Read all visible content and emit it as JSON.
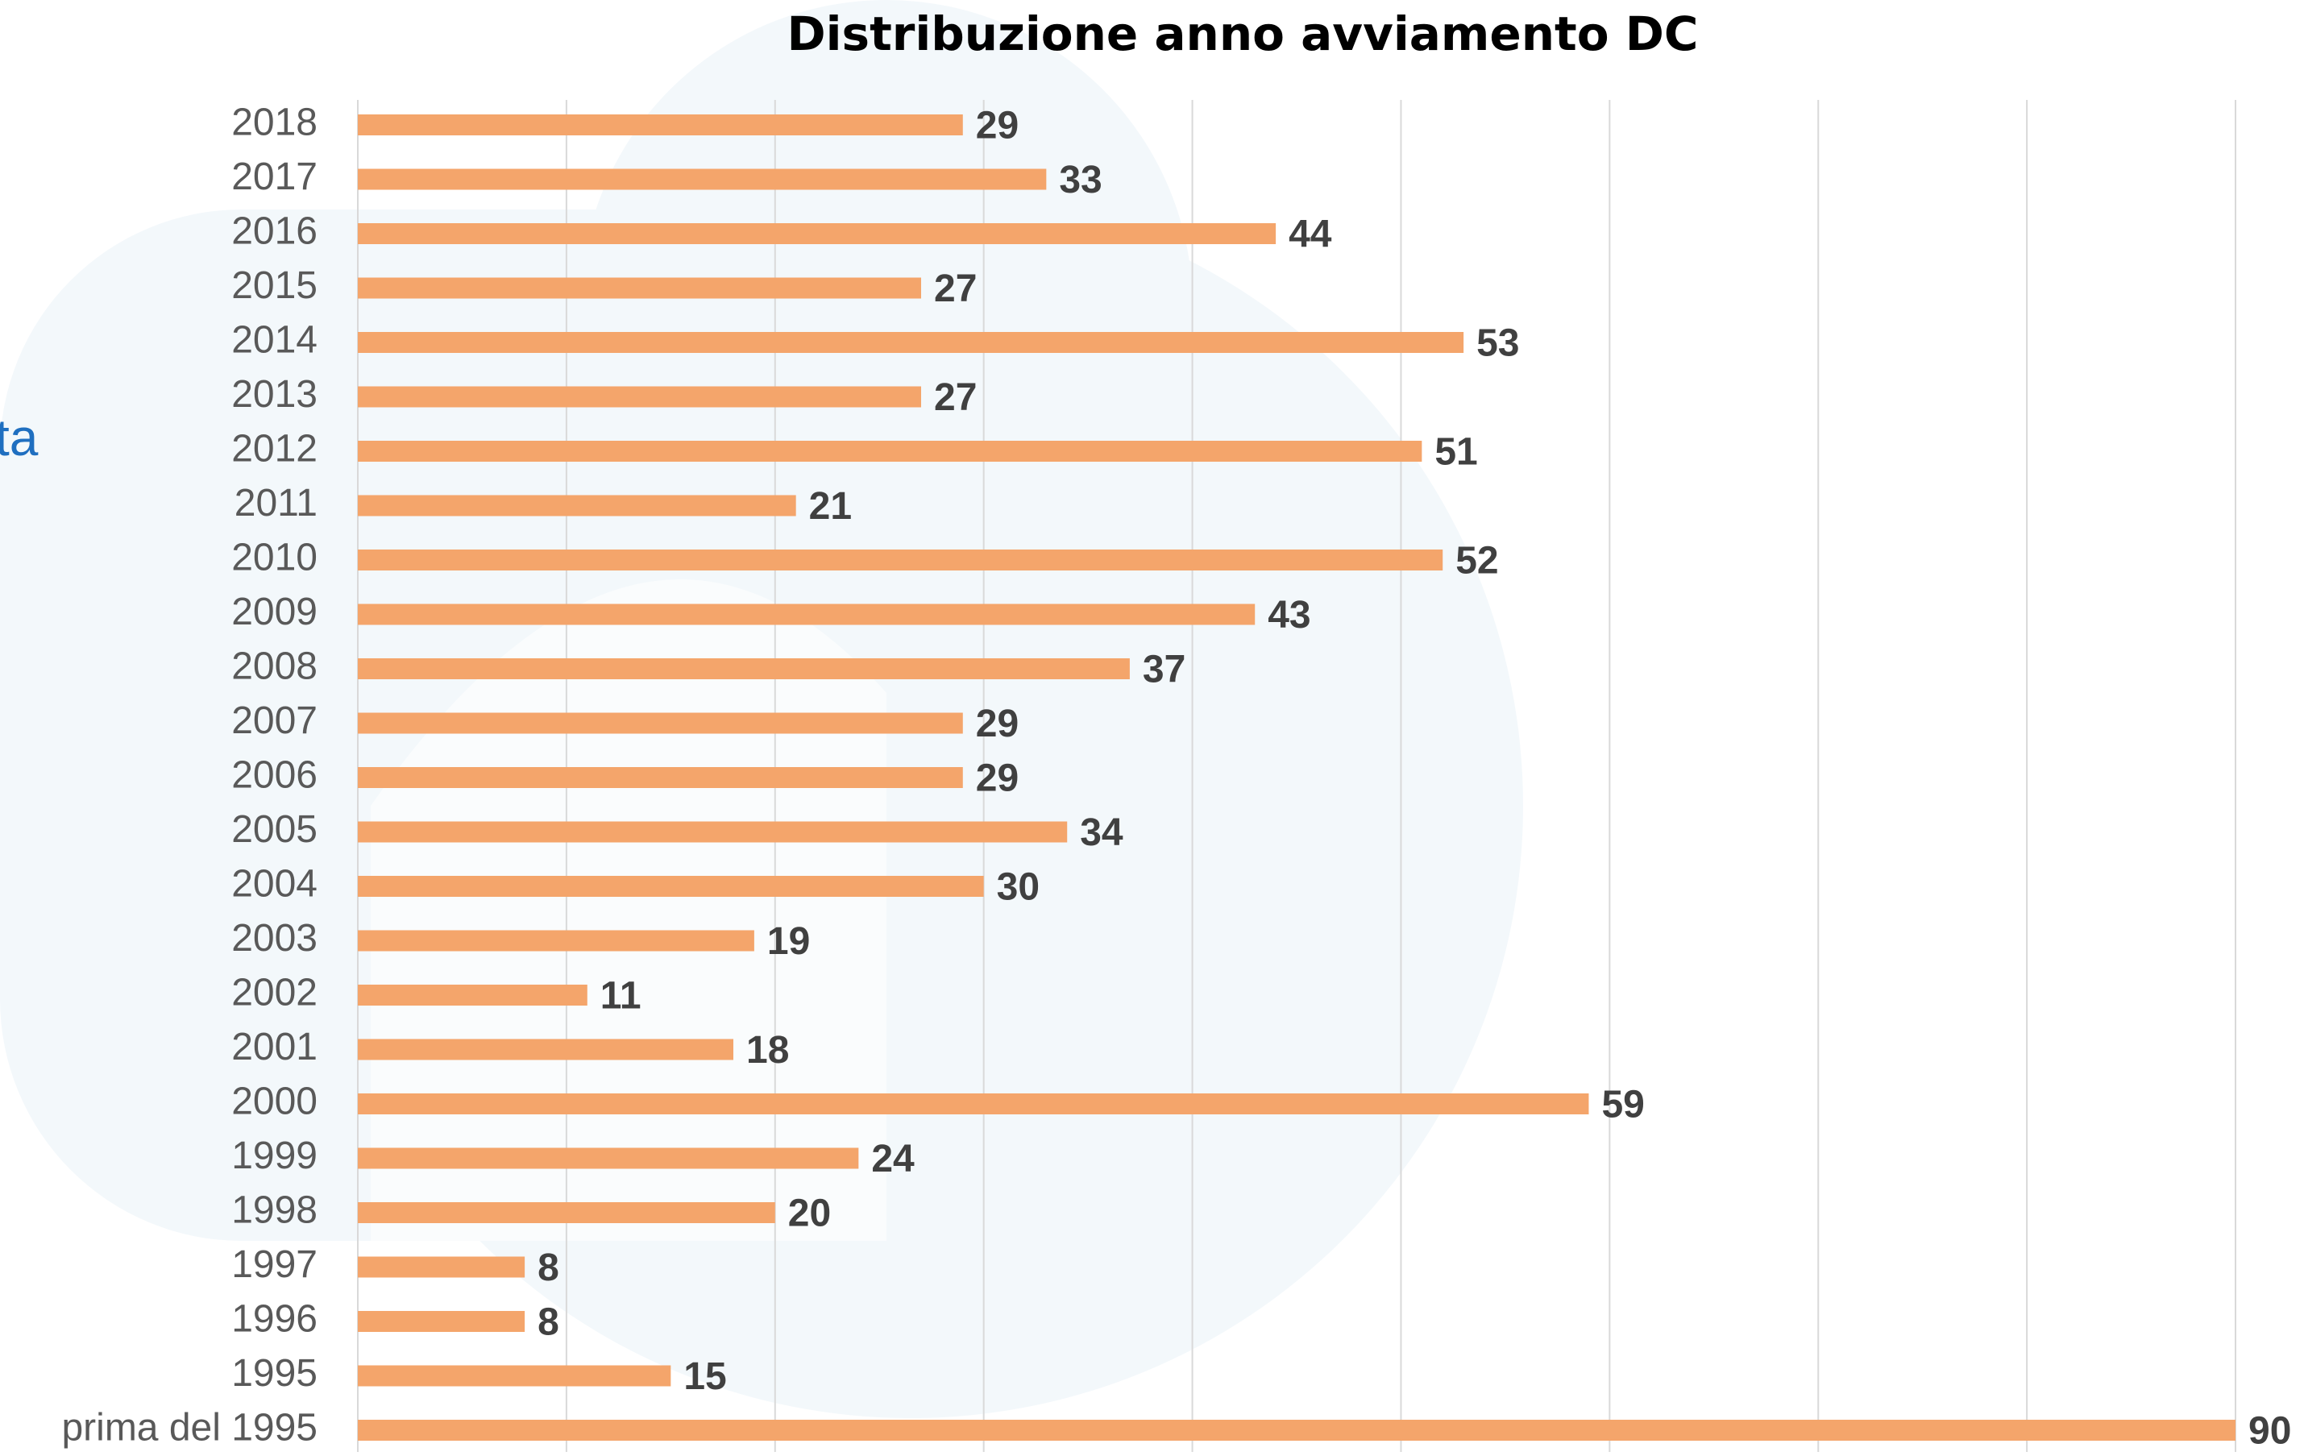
{
  "background_text": "ta",
  "chart_data": {
    "type": "bar",
    "orientation": "horizontal",
    "title": "Distribuzione anno avviamento DC",
    "categories": [
      "2018",
      "2017",
      "2016",
      "2015",
      "2014",
      "2013",
      "2012",
      "2011",
      "2010",
      "2009",
      "2008",
      "2007",
      "2006",
      "2005",
      "2004",
      "2003",
      "2002",
      "2001",
      "2000",
      "1999",
      "1998",
      "1997",
      "1996",
      "1995",
      "prima del 1995"
    ],
    "values": [
      29,
      33,
      44,
      27,
      53,
      27,
      51,
      21,
      52,
      43,
      37,
      29,
      29,
      34,
      30,
      19,
      11,
      18,
      59,
      24,
      20,
      8,
      8,
      15,
      90
    ],
    "color": "#f4a56b",
    "xlim": [
      0,
      90
    ],
    "xticks": [
      0,
      10,
      20,
      30,
      40,
      50,
      60,
      70,
      80,
      90
    ],
    "grid": true
  }
}
